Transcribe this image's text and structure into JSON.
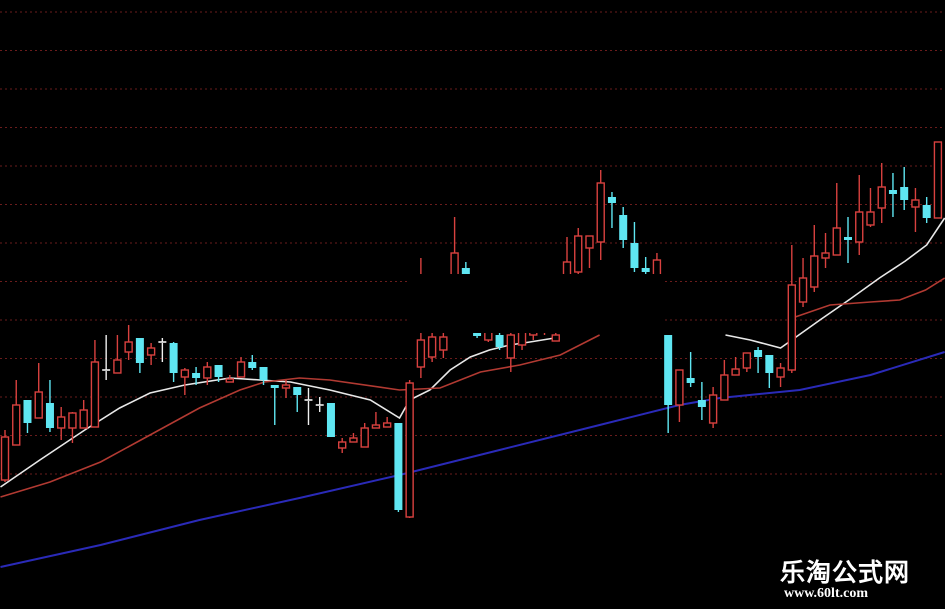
{
  "chart_data": {
    "type": "candlestick",
    "title": "",
    "xlabel": "",
    "ylabel": "",
    "grid": true,
    "colors": {
      "background": "#000000",
      "up": "#d9413f",
      "down": "#5fe6f2",
      "doji": "#f0f0f0",
      "grid": "#6a1c1c",
      "ma_short": "#e8e8e8",
      "ma_mid": "#b23a32",
      "ma_long": "#2a2ab8"
    },
    "candles_ohlc": [
      [
        30,
        42.5,
        29.5,
        40.75
      ],
      [
        38.75,
        55,
        38.75,
        48.75
      ],
      [
        50,
        50,
        41.75,
        44.25
      ],
      [
        45.5,
        59.25,
        45.5,
        52
      ],
      [
        49.25,
        55,
        42,
        43
      ],
      [
        43,
        48.25,
        40,
        45.75
      ],
      [
        43,
        47,
        39.25,
        46.75
      ],
      [
        43,
        50,
        43,
        47.5
      ],
      [
        43.25,
        65,
        43.25,
        59.5
      ],
      [
        57.5,
        66.25,
        55,
        57.25
      ],
      [
        56.75,
        66.25,
        56.75,
        60
      ],
      [
        62,
        68.75,
        60,
        64.5
      ],
      [
        65.5,
        65.5,
        56.75,
        59.25
      ],
      [
        61.25,
        64.25,
        58.75,
        63
      ],
      [
        64.5,
        65.5,
        59.5,
        64.25
      ],
      [
        64.25,
        64.5,
        54.5,
        56.75
      ],
      [
        55.75,
        58,
        51.25,
        57.5
      ],
      [
        56.75,
        58.25,
        53.75,
        55.5
      ],
      [
        55.5,
        59.5,
        53.75,
        58.25
      ],
      [
        58.75,
        58.75,
        54.5,
        55.75
      ],
      [
        54.5,
        56.25,
        54.5,
        55.25
      ],
      [
        55.75,
        60.75,
        55.75,
        59.5
      ],
      [
        59.5,
        61.25,
        57.5,
        58
      ],
      [
        58.25,
        58.25,
        53.75,
        55
      ],
      [
        53.75,
        53.75,
        43.75,
        53
      ],
      [
        53,
        55,
        50.5,
        53.75
      ],
      [
        53.25,
        53.25,
        47,
        51.25
      ],
      [
        50,
        53,
        43.75,
        49.75
      ],
      [
        48.75,
        50.75,
        47,
        48.5
      ],
      [
        49.25,
        49.25,
        40.75,
        40.75
      ],
      [
        38,
        40.5,
        36.75,
        39.5
      ],
      [
        39.5,
        41.75,
        39.5,
        40.5
      ],
      [
        38.25,
        44.25,
        38.25,
        43
      ],
      [
        43,
        47,
        43,
        43.75
      ],
      [
        43.25,
        45.75,
        43.25,
        44.25
      ],
      [
        44.25,
        44.25,
        22,
        22.5
      ],
      [
        20.75,
        55,
        20.5,
        54.25
      ],
      [
        58.25,
        85.5,
        55.5,
        65
      ],
      [
        60.75,
        70,
        59.5,
        65.75
      ],
      [
        62.5,
        70,
        60.5,
        65.75
      ],
      [
        75,
        95.75,
        72.5,
        86.75
      ],
      [
        83,
        84.5,
        75,
        77.5
      ],
      [
        68.75,
        70,
        65.5,
        66
      ],
      [
        65,
        69.5,
        64.5,
        67.5
      ],
      [
        66.25,
        67.5,
        62.5,
        63.25
      ],
      [
        60.5,
        68.75,
        57,
        66.25
      ],
      [
        63.75,
        70,
        62.5,
        67.5
      ],
      [
        66.25,
        71.25,
        65,
        68.75
      ],
      [
        67.5,
        73.75,
        66.25,
        70.5
      ],
      [
        64.75,
        66.75,
        64.75,
        66.25
      ],
      [
        75,
        90.75,
        72.5,
        84.5
      ],
      [
        82,
        93,
        78.75,
        91
      ],
      [
        88,
        91,
        83,
        91
      ],
      [
        89.5,
        107.5,
        85,
        104.25
      ],
      [
        100.75,
        102,
        93,
        99.25
      ],
      [
        96.25,
        98.25,
        88,
        90
      ],
      [
        89.25,
        94.5,
        82,
        83
      ],
      [
        83,
        85.75,
        81.25,
        82
      ],
      [
        77.5,
        86.75,
        75,
        85
      ],
      [
        66.25,
        66.25,
        41.75,
        48.75
      ],
      [
        48.75,
        57.5,
        44.5,
        57.5
      ],
      [
        55.5,
        62,
        53.25,
        54.25
      ],
      [
        50,
        54.5,
        45,
        48.25
      ],
      [
        44.25,
        53.25,
        43,
        51.25
      ],
      [
        50,
        60,
        50,
        56.25
      ],
      [
        56.25,
        60.75,
        56.25,
        57.75
      ],
      [
        58,
        61.75,
        57,
        61.75
      ],
      [
        62.5,
        63.25,
        56.75,
        60.75
      ],
      [
        61.25,
        61.25,
        53,
        56.75
      ],
      [
        55.75,
        59.25,
        53.25,
        58
      ],
      [
        57.5,
        88.75,
        56.75,
        78.75
      ],
      [
        74.5,
        85.5,
        73.25,
        80.5
      ],
      [
        78.25,
        93.75,
        77,
        86
      ],
      [
        85.5,
        91.75,
        83,
        86.75
      ],
      [
        86.25,
        104.25,
        86.25,
        93
      ],
      [
        90.75,
        95.75,
        84.25,
        90
      ],
      [
        89.5,
        106.25,
        86.25,
        97
      ],
      [
        93.75,
        103,
        93.25,
        97
      ],
      [
        98,
        109.25,
        94.25,
        103.25
      ],
      [
        102.5,
        106.75,
        95.75,
        101.5
      ],
      [
        103.25,
        108.25,
        97.5,
        100
      ],
      [
        98.25,
        103,
        92,
        100
      ],
      [
        98.75,
        100.75,
        94.25,
        95.5
      ],
      [
        95.5,
        114.5,
        95.5,
        114.5
      ]
    ],
    "moving_averages": [
      {
        "role": "short",
        "segments": [
          [
            [
              -0.4,
              28.25
            ],
            [
              3.1,
              35
            ],
            [
              7.1,
              42.5
            ],
            [
              10.2,
              48
            ],
            [
              12.9,
              51.75
            ],
            [
              16,
              53.75
            ],
            [
              20,
              55.5
            ],
            [
              22.7,
              55
            ],
            [
              25.4,
              54.5
            ],
            [
              28.9,
              52.5
            ],
            [
              32.5,
              50
            ],
            [
              35.1,
              45.5
            ],
            [
              36,
              50
            ],
            [
              37.8,
              52.5
            ],
            [
              39.6,
              57.5
            ],
            [
              41.4,
              60.75
            ],
            [
              43.1,
              62.5
            ],
            [
              44.9,
              63.75
            ],
            [
              46.7,
              64.5
            ],
            [
              48.9,
              65.5
            ]
          ],
          [
            [
              64.1,
              66.25
            ],
            [
              66.3,
              65
            ],
            [
              69,
              63
            ],
            [
              72.5,
              70
            ],
            [
              75.2,
              75.25
            ],
            [
              77.8,
              80.5
            ],
            [
              80.1,
              84.75
            ],
            [
              82,
              88.75
            ],
            [
              83.6,
              95.5
            ]
          ]
        ]
      },
      {
        "role": "mid",
        "segments": [
          [
            [
              -0.4,
              25.75
            ],
            [
              4,
              29.5
            ],
            [
              8.5,
              34.5
            ],
            [
              12.9,
              41.25
            ],
            [
              17.3,
              48
            ],
            [
              20.9,
              52.5
            ],
            [
              23.1,
              54.5
            ],
            [
              26.2,
              55.5
            ],
            [
              28.9,
              55
            ],
            [
              35.1,
              52.5
            ],
            [
              38.7,
              53
            ],
            [
              42.3,
              57
            ],
            [
              45.8,
              58.75
            ],
            [
              49.4,
              61.25
            ],
            [
              52.9,
              66.25
            ]
          ],
          [
            [
              70.3,
              70.75
            ],
            [
              73.4,
              73.75
            ],
            [
              77,
              74.5
            ],
            [
              79.6,
              75
            ],
            [
              81.9,
              77.5
            ],
            [
              83.6,
              80.5
            ]
          ]
        ]
      },
      {
        "role": "long",
        "segments": [
          [
            [
              -0.4,
              8.25
            ],
            [
              8.5,
              13.75
            ],
            [
              17.3,
              20
            ],
            [
              26.2,
              25.5
            ],
            [
              35.1,
              31.25
            ],
            [
              44,
              37.5
            ],
            [
              52.9,
              43.75
            ],
            [
              60,
              48.75
            ],
            [
              63.6,
              50.5
            ],
            [
              70.7,
              52.5
            ],
            [
              77,
              56.25
            ],
            [
              83.6,
              62
            ]
          ]
        ]
      }
    ]
  },
  "watermark": {
    "title": "乐淘公式网",
    "url": "www.60lt.com"
  }
}
